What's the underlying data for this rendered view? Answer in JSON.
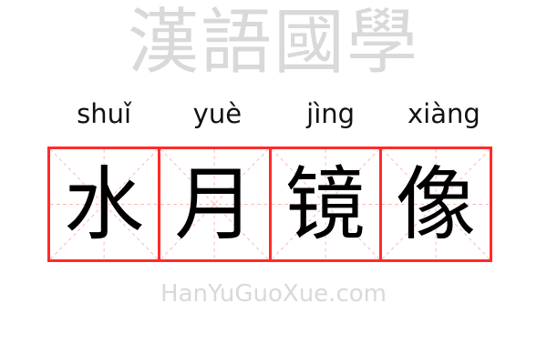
{
  "pinyin": [
    "shuǐ",
    "yuè",
    "jìng",
    "xiàng"
  ],
  "characters": [
    "水",
    "月",
    "镜",
    "像"
  ],
  "watermark": {
    "chinese": "漢語國學",
    "latin": "HanYuGuoXue.com"
  },
  "colors": {
    "border": "#ff2a2a",
    "guide": "#ffb3b3",
    "text": "#000000",
    "watermark": "#e6e6e6"
  }
}
